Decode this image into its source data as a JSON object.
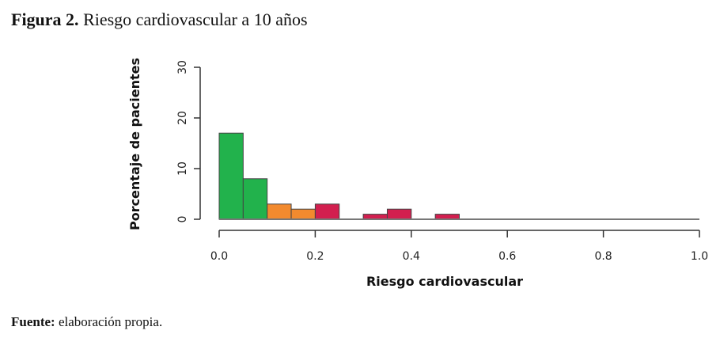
{
  "figure": {
    "label": "Figura 2.",
    "title": "Riesgo cardiovascular a 10 años"
  },
  "footer": {
    "label": "Fuente:",
    "text": "elaboración propia."
  },
  "colors": {
    "green": "#22b24c",
    "orange": "#f28a2e",
    "red": "#d21f4f",
    "axis": "#333333"
  },
  "chart_data": {
    "type": "bar",
    "xlabel": "Riesgo cardiovascular",
    "ylabel": "Porcentaje de pacientes",
    "xlim": [
      0.0,
      1.0
    ],
    "ylim": [
      0,
      30
    ],
    "x_ticks": [
      0.0,
      0.2,
      0.4,
      0.6,
      0.8,
      1.0
    ],
    "x_tick_labels": [
      "0.0",
      "0.2",
      "0.4",
      "0.6",
      "0.8",
      "1.0"
    ],
    "y_ticks": [
      0,
      10,
      20,
      30
    ],
    "y_tick_labels": [
      "0",
      "10",
      "20",
      "30"
    ],
    "grid": false,
    "bins": [
      {
        "x0": 0.0,
        "x1": 0.05,
        "value": 17,
        "color": "green"
      },
      {
        "x0": 0.05,
        "x1": 0.1,
        "value": 8,
        "color": "green"
      },
      {
        "x0": 0.1,
        "x1": 0.15,
        "value": 3,
        "color": "orange"
      },
      {
        "x0": 0.15,
        "x1": 0.2,
        "value": 2,
        "color": "orange"
      },
      {
        "x0": 0.2,
        "x1": 0.25,
        "value": 3,
        "color": "red"
      },
      {
        "x0": 0.25,
        "x1": 0.3,
        "value": 0,
        "color": "red"
      },
      {
        "x0": 0.3,
        "x1": 0.35,
        "value": 1,
        "color": "red"
      },
      {
        "x0": 0.35,
        "x1": 0.4,
        "value": 2,
        "color": "red"
      },
      {
        "x0": 0.4,
        "x1": 0.45,
        "value": 0,
        "color": "red"
      },
      {
        "x0": 0.45,
        "x1": 0.5,
        "value": 1,
        "color": "red"
      },
      {
        "x0": 0.5,
        "x1": 1.0,
        "value": 0,
        "color": "red"
      }
    ]
  }
}
